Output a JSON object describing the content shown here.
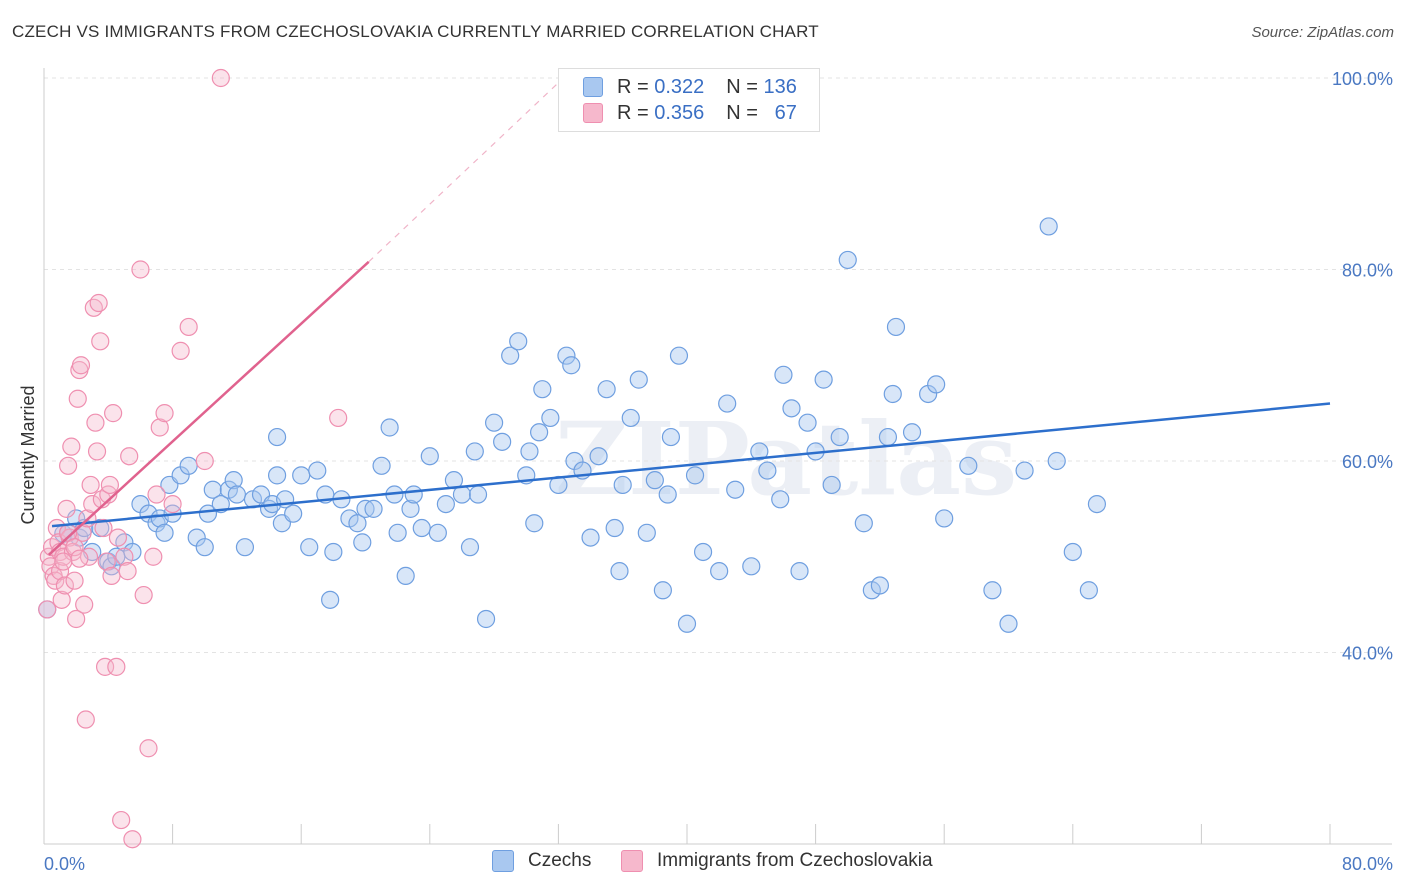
{
  "header": {
    "title": "CZECH VS IMMIGRANTS FROM CZECHOSLOVAKIA CURRENTLY MARRIED CORRELATION CHART",
    "source": "Source: ZipAtlas.com"
  },
  "legend": {
    "rows": [
      {
        "r_label": "R =",
        "r_value": "0.322",
        "n_label": "N =",
        "n_value": "136",
        "color": "#a9c8f0"
      },
      {
        "r_label": "R =",
        "r_value": "0.356",
        "n_label": "N =",
        "n_value": "67",
        "color": "#f6b8cc"
      }
    ]
  },
  "bottom_legend": {
    "items": [
      {
        "label": "Czechs",
        "color": "#a9c8f0"
      },
      {
        "label": "Immigrants from Czechoslovakia",
        "color": "#f6b8cc"
      }
    ]
  },
  "watermark": "ZIPatlas",
  "chart_data": {
    "type": "scatter",
    "ylabel": "Currently Married",
    "xlim": [
      0,
      80
    ],
    "ylim": [
      20,
      100
    ],
    "x_tick_labels": [
      "0.0%",
      "80.0%"
    ],
    "y_ticks": [
      {
        "value": 100,
        "label": "100.0%"
      },
      {
        "value": 80,
        "label": "80.0%"
      },
      {
        "value": 60,
        "label": "60.0%"
      },
      {
        "value": 40,
        "label": "40.0%"
      }
    ],
    "grid": true,
    "legend_placement": "top-center",
    "series": [
      {
        "name": "Czechs",
        "color": "#6f9fe0",
        "fill": "rgba(169,200,240,0.45)",
        "trend": {
          "x0": 0.5,
          "y0": 53.2,
          "x1": 80,
          "y1": 66.0,
          "color": "#2d6fcc"
        },
        "points": [
          [
            0.2,
            44.5
          ],
          [
            1.2,
            52.4
          ],
          [
            1.5,
            52.5
          ],
          [
            2.0,
            54.0
          ],
          [
            2.2,
            52.0
          ],
          [
            2.5,
            53.0
          ],
          [
            3.0,
            50.5
          ],
          [
            3.5,
            53.0
          ],
          [
            4.0,
            49.5
          ],
          [
            4.2,
            49.0
          ],
          [
            4.5,
            50.0
          ],
          [
            5.0,
            51.5
          ],
          [
            5.5,
            50.5
          ],
          [
            6.0,
            55.5
          ],
          [
            6.5,
            54.5
          ],
          [
            7.0,
            53.5
          ],
          [
            7.2,
            54.0
          ],
          [
            7.5,
            52.5
          ],
          [
            7.8,
            57.5
          ],
          [
            8.0,
            54.5
          ],
          [
            8.5,
            58.5
          ],
          [
            9.0,
            59.5
          ],
          [
            9.5,
            52.0
          ],
          [
            10.0,
            51.0
          ],
          [
            10.2,
            54.5
          ],
          [
            10.5,
            57.0
          ],
          [
            11.0,
            55.5
          ],
          [
            11.5,
            57.0
          ],
          [
            11.8,
            58.0
          ],
          [
            12.0,
            56.5
          ],
          [
            12.5,
            51.0
          ],
          [
            13.0,
            56.0
          ],
          [
            13.5,
            56.5
          ],
          [
            14.0,
            55.0
          ],
          [
            14.2,
            55.5
          ],
          [
            14.5,
            62.5
          ],
          [
            14.8,
            53.5
          ],
          [
            15.0,
            56.0
          ],
          [
            15.5,
            54.5
          ],
          [
            16.0,
            58.5
          ],
          [
            16.5,
            51.0
          ],
          [
            17.0,
            59.0
          ],
          [
            17.5,
            56.5
          ],
          [
            17.8,
            45.5
          ],
          [
            18.0,
            50.5
          ],
          [
            18.5,
            56.0
          ],
          [
            19.0,
            54.0
          ],
          [
            19.5,
            53.5
          ],
          [
            19.8,
            51.5
          ],
          [
            20.0,
            55.0
          ],
          [
            20.5,
            55.0
          ],
          [
            21.0,
            59.5
          ],
          [
            21.5,
            63.5
          ],
          [
            21.8,
            56.5
          ],
          [
            22.0,
            52.5
          ],
          [
            22.5,
            48.0
          ],
          [
            22.8,
            55.0
          ],
          [
            23.0,
            56.5
          ],
          [
            23.5,
            53.0
          ],
          [
            24.0,
            60.5
          ],
          [
            24.5,
            52.5
          ],
          [
            25.0,
            55.5
          ],
          [
            25.5,
            58.0
          ],
          [
            26.0,
            56.5
          ],
          [
            26.5,
            51.0
          ],
          [
            26.8,
            61.0
          ],
          [
            27.0,
            56.5
          ],
          [
            27.5,
            43.5
          ],
          [
            28.0,
            64.0
          ],
          [
            28.5,
            62.0
          ],
          [
            29.0,
            71.0
          ],
          [
            29.5,
            72.5
          ],
          [
            30.0,
            58.5
          ],
          [
            30.5,
            53.5
          ],
          [
            30.8,
            63.0
          ],
          [
            31.0,
            67.5
          ],
          [
            31.5,
            64.5
          ],
          [
            32.0,
            57.5
          ],
          [
            32.5,
            71.0
          ],
          [
            32.8,
            70.0
          ],
          [
            33.0,
            60.0
          ],
          [
            33.5,
            59.0
          ],
          [
            34.0,
            52.0
          ],
          [
            34.5,
            60.5
          ],
          [
            35.0,
            67.5
          ],
          [
            35.5,
            53.0
          ],
          [
            35.8,
            48.5
          ],
          [
            36.0,
            57.5
          ],
          [
            36.5,
            64.5
          ],
          [
            37.0,
            68.5
          ],
          [
            37.5,
            52.5
          ],
          [
            38.0,
            58.0
          ],
          [
            38.5,
            46.5
          ],
          [
            39.0,
            62.5
          ],
          [
            39.5,
            71.0
          ],
          [
            40.0,
            43.0
          ],
          [
            40.5,
            58.5
          ],
          [
            41.0,
            50.5
          ],
          [
            42.0,
            48.5
          ],
          [
            42.5,
            66.0
          ],
          [
            43.0,
            57.0
          ],
          [
            44.0,
            49.0
          ],
          [
            44.5,
            61.0
          ],
          [
            45.0,
            59.0
          ],
          [
            45.8,
            56.0
          ],
          [
            46.0,
            69.0
          ],
          [
            46.5,
            65.5
          ],
          [
            47.0,
            48.5
          ],
          [
            47.5,
            64.0
          ],
          [
            48.0,
            61.0
          ],
          [
            48.5,
            68.5
          ],
          [
            49.0,
            57.5
          ],
          [
            49.5,
            62.5
          ],
          [
            50.0,
            81.0
          ],
          [
            51.0,
            53.5
          ],
          [
            51.5,
            46.5
          ],
          [
            52.0,
            47.0
          ],
          [
            52.5,
            62.5
          ],
          [
            53.0,
            74.0
          ],
          [
            54.0,
            63.0
          ],
          [
            55.0,
            67.0
          ],
          [
            55.5,
            68.0
          ],
          [
            56.0,
            54.0
          ],
          [
            57.5,
            59.5
          ],
          [
            59.0,
            46.5
          ],
          [
            60.0,
            43.0
          ],
          [
            61.0,
            59.0
          ],
          [
            62.5,
            84.5
          ],
          [
            65.0,
            46.5
          ],
          [
            65.5,
            55.5
          ],
          [
            63.0,
            60.0
          ],
          [
            64.0,
            50.5
          ],
          [
            52.8,
            67.0
          ],
          [
            38.8,
            56.5
          ],
          [
            30.2,
            61.0
          ],
          [
            14.5,
            58.5
          ]
        ]
      },
      {
        "name": "Immigrants from Czechoslovakia",
        "color": "#ef8fb0",
        "fill": "rgba(246,184,204,0.40)",
        "trend": {
          "x0": 0.3,
          "y0": 50.2,
          "x1": 20.2,
          "y1": 80.8,
          "dashed_to": {
            "x": 32.0,
            "y": 99.5
          },
          "color": "#e0628e"
        },
        "points": [
          [
            0.2,
            44.5
          ],
          [
            0.3,
            50.0
          ],
          [
            0.4,
            49.0
          ],
          [
            0.5,
            51.0
          ],
          [
            0.6,
            48.0
          ],
          [
            0.7,
            47.5
          ],
          [
            0.8,
            53.0
          ],
          [
            0.9,
            51.5
          ],
          [
            1.0,
            50.5
          ],
          [
            1.0,
            48.5
          ],
          [
            1.1,
            45.5
          ],
          [
            1.2,
            50.0
          ],
          [
            1.3,
            47.0
          ],
          [
            1.4,
            55.0
          ],
          [
            1.5,
            59.5
          ],
          [
            1.6,
            52.0
          ],
          [
            1.7,
            61.5
          ],
          [
            1.8,
            50.5
          ],
          [
            1.9,
            47.5
          ],
          [
            2.0,
            43.5
          ],
          [
            2.1,
            66.5
          ],
          [
            2.2,
            69.5
          ],
          [
            2.3,
            70.0
          ],
          [
            2.4,
            52.5
          ],
          [
            2.5,
            45.0
          ],
          [
            2.6,
            33.0
          ],
          [
            2.7,
            54.0
          ],
          [
            2.8,
            50.0
          ],
          [
            2.9,
            57.5
          ],
          [
            3.0,
            55.5
          ],
          [
            3.1,
            76.0
          ],
          [
            3.2,
            64.0
          ],
          [
            3.3,
            61.0
          ],
          [
            3.4,
            76.5
          ],
          [
            3.5,
            72.5
          ],
          [
            3.6,
            56.0
          ],
          [
            3.7,
            53.0
          ],
          [
            3.8,
            38.5
          ],
          [
            3.9,
            49.5
          ],
          [
            4.0,
            56.5
          ],
          [
            4.1,
            57.5
          ],
          [
            4.2,
            48.0
          ],
          [
            4.3,
            65.0
          ],
          [
            4.5,
            38.5
          ],
          [
            4.6,
            52.0
          ],
          [
            4.8,
            22.5
          ],
          [
            5.0,
            50.0
          ],
          [
            5.2,
            48.5
          ],
          [
            5.3,
            60.5
          ],
          [
            5.5,
            20.5
          ],
          [
            6.0,
            80.0
          ],
          [
            6.2,
            46.0
          ],
          [
            6.5,
            30.0
          ],
          [
            6.8,
            50.0
          ],
          [
            7.0,
            56.5
          ],
          [
            7.2,
            63.5
          ],
          [
            7.5,
            65.0
          ],
          [
            8.0,
            55.5
          ],
          [
            8.5,
            71.5
          ],
          [
            9.0,
            74.0
          ],
          [
            10.0,
            60.0
          ],
          [
            11.0,
            100.0
          ],
          [
            18.3,
            64.5
          ],
          [
            1.5,
            52.5
          ],
          [
            1.9,
            51.0
          ],
          [
            2.2,
            49.8
          ],
          [
            1.2,
            49.5
          ]
        ]
      }
    ]
  }
}
